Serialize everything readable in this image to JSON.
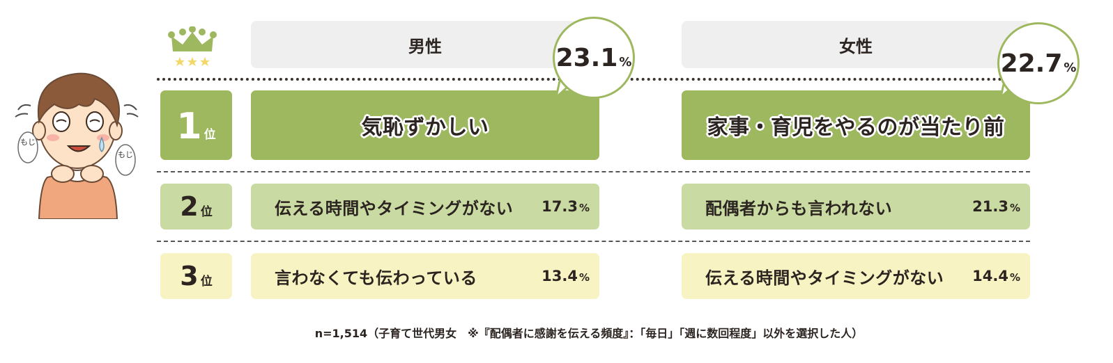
{
  "colors": {
    "rank1": "#9db85e",
    "rank2": "#c9dba2",
    "rank3": "#f8f3c2",
    "header": "#efefef"
  },
  "chart_data": {
    "type": "table",
    "title": "",
    "rank_unit": "位",
    "percent_sign": "%",
    "columns": [
      {
        "header": "男性",
        "rows": [
          {
            "rank": 1,
            "label": "気恥ずかしい",
            "value": "23.1"
          },
          {
            "rank": 2,
            "label": "伝える時間やタイミングがない",
            "value": "17.3"
          },
          {
            "rank": 3,
            "label": "言わなくても伝わっている",
            "value": "13.4"
          }
        ]
      },
      {
        "header": "女性",
        "rows": [
          {
            "rank": 1,
            "label": "家事・育児をやるのが当たり前",
            "value": "22.7"
          },
          {
            "rank": 2,
            "label": "配偶者からも言われない",
            "value": "21.3"
          },
          {
            "rank": 3,
            "label": "伝える時間やタイミングがない",
            "value": "14.4"
          }
        ]
      }
    ]
  },
  "illustration": {
    "mumble_left": "もじ",
    "mumble_right": "もじ",
    "crown_icon": "crown-icon"
  },
  "footnote": "n=1,514（子育て世代男女　※『配偶者に感謝を伝える頻度』：「毎日」「週に数回程度」以外を選択した人）"
}
